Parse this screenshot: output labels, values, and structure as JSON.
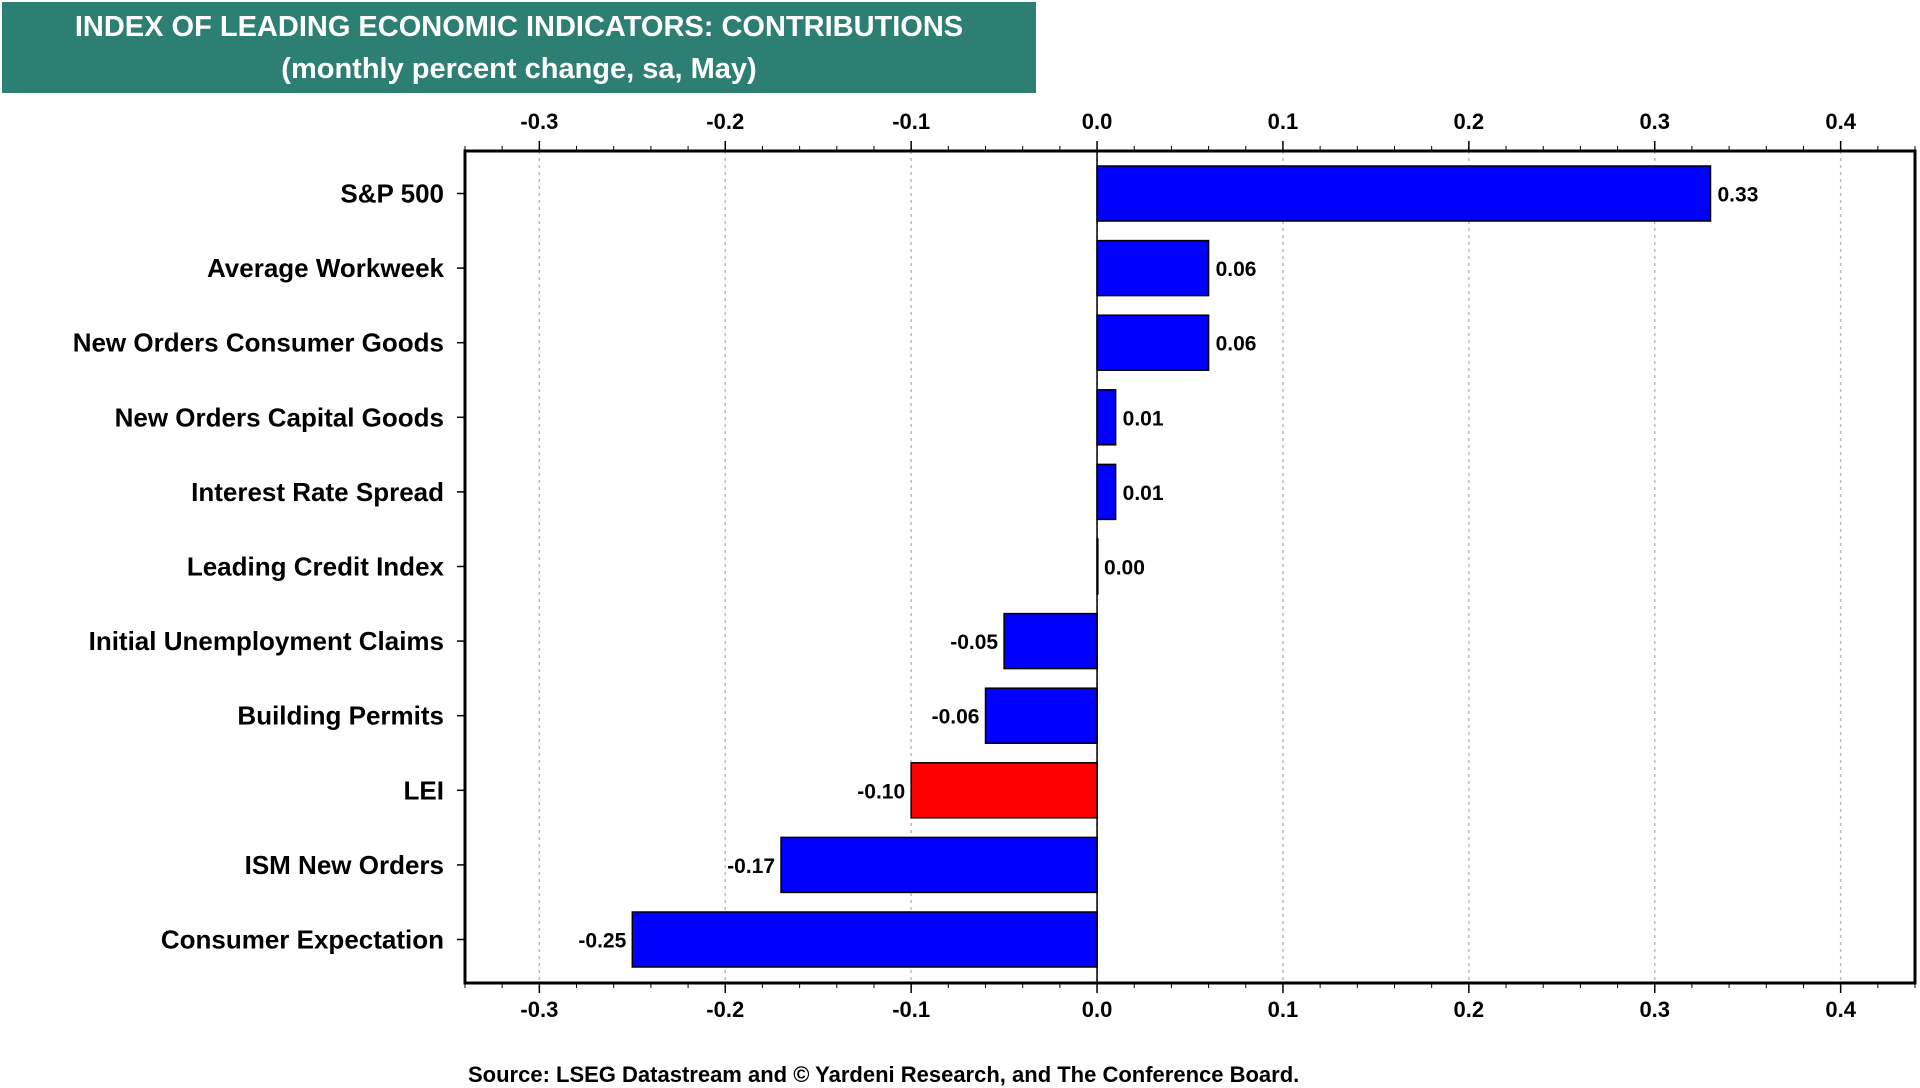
{
  "title": "INDEX OF LEADING ECONOMIC INDICATORS: CONTRIBUTIONS",
  "subtitle": "(monthly percent change, sa, May)",
  "source": "Source: LSEG Datastream and © Yardeni Research, and The Conference Board.",
  "colors": {
    "title_bg": "#2e7f73",
    "bar_default": "#0000ff",
    "bar_highlight": "#ff0000"
  },
  "chart_data": {
    "type": "bar",
    "orientation": "horizontal",
    "categories": [
      "S&P 500",
      "Average Workweek",
      "New Orders Consumer Goods",
      "New Orders Capital Goods",
      "Interest Rate Spread",
      "Leading Credit Index",
      "Initial Unemployment Claims",
      "Building Permits",
      "LEI",
      "ISM New Orders",
      "Consumer Expectation"
    ],
    "values": [
      0.33,
      0.06,
      0.06,
      0.01,
      0.01,
      0.0,
      -0.05,
      -0.06,
      -0.1,
      -0.17,
      -0.25
    ],
    "value_labels": [
      "0.33",
      "0.06",
      "0.06",
      "0.01",
      "0.01",
      "0.00",
      "-0.05",
      "-0.06",
      "-0.10",
      "-0.17",
      "-0.25"
    ],
    "highlight": [
      "LEI"
    ],
    "xlim": [
      -0.34,
      0.44
    ],
    "xticks": [
      -0.3,
      -0.2,
      -0.1,
      0.0,
      0.1,
      0.2,
      0.3,
      0.4
    ],
    "xtick_labels": [
      "-0.3",
      "-0.2",
      "-0.1",
      "0.0",
      "0.1",
      "0.2",
      "0.3",
      "0.4"
    ],
    "grid": "vertical dotted",
    "axis_labels_top_and_bottom": true
  }
}
